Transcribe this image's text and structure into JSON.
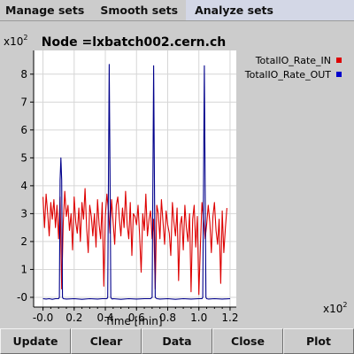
{
  "menu": {
    "items": [
      {
        "label": "Manage sets"
      },
      {
        "label": "Smooth sets"
      },
      {
        "label": "Analyze sets"
      }
    ]
  },
  "toolbar": {
    "buttons": [
      {
        "label": "Update"
      },
      {
        "label": "Clear"
      },
      {
        "label": "Data"
      },
      {
        "label": "Close"
      },
      {
        "label": "Plot"
      }
    ]
  },
  "chart_data": {
    "type": "line",
    "title": "Node =lxbatch002.cern.ch",
    "xlabel": "Time [min]",
    "ylabel": "",
    "x_multiplier": "x10",
    "x_multiplier_exp": "2",
    "y_multiplier": "x10",
    "y_multiplier_exp": "2",
    "xlim": [
      -0.06,
      1.24
    ],
    "ylim": [
      -0.35,
      8.85
    ],
    "xticks": [
      -0.0,
      0.2,
      0.4,
      0.6,
      0.8,
      1.0,
      1.2
    ],
    "xtick_labels": [
      "-0.0",
      "0.2",
      "0.4",
      "0.6",
      "0.8",
      "1.0",
      "1.2"
    ],
    "yticks": [
      -0.0,
      1,
      2,
      3,
      4,
      5,
      6,
      7,
      8
    ],
    "ytick_labels": [
      "-0",
      "1",
      "2",
      "3",
      "4",
      "5",
      "6",
      "7",
      "8"
    ],
    "grid": true,
    "legend_position": "right-top",
    "colors": {
      "in": "#dd0000",
      "out": "#00008b",
      "grid": "#d6d6d6"
    },
    "series": [
      {
        "name": "TotalIO_Rate_IN",
        "color": "#dd0000",
        "x": [
          0.0,
          0.01,
          0.02,
          0.03,
          0.04,
          0.05,
          0.06,
          0.07,
          0.08,
          0.09,
          0.1,
          0.11,
          0.12,
          0.13,
          0.14,
          0.15,
          0.16,
          0.17,
          0.18,
          0.19,
          0.2,
          0.21,
          0.22,
          0.23,
          0.24,
          0.25,
          0.26,
          0.27,
          0.28,
          0.29,
          0.3,
          0.31,
          0.32,
          0.33,
          0.34,
          0.35,
          0.36,
          0.37,
          0.38,
          0.39,
          0.4,
          0.41,
          0.42,
          0.43,
          0.44,
          0.45,
          0.46,
          0.47,
          0.48,
          0.49,
          0.5,
          0.51,
          0.52,
          0.53,
          0.54,
          0.55,
          0.56,
          0.57,
          0.58,
          0.59,
          0.6,
          0.61,
          0.62,
          0.63,
          0.64,
          0.65,
          0.66,
          0.67,
          0.68,
          0.69,
          0.7,
          0.71,
          0.72,
          0.73,
          0.74,
          0.75,
          0.76,
          0.77,
          0.78,
          0.79,
          0.8,
          0.81,
          0.82,
          0.83,
          0.84,
          0.85,
          0.86,
          0.87,
          0.88,
          0.89,
          0.9,
          0.91,
          0.92,
          0.93,
          0.94,
          0.95,
          0.96,
          0.97,
          0.98,
          0.99,
          1.0,
          1.01,
          1.02,
          1.03,
          1.04,
          1.05,
          1.06,
          1.07,
          1.08,
          1.09,
          1.1,
          1.11,
          1.12,
          1.13,
          1.14,
          1.15,
          1.16,
          1.17,
          1.18
        ],
        "y": [
          3.6,
          2.5,
          3.7,
          3.0,
          2.2,
          3.4,
          2.8,
          3.5,
          2.5,
          3.3,
          2.1,
          3.6,
          0.3,
          2.7,
          3.8,
          2.9,
          3.3,
          2.4,
          3.0,
          1.7,
          3.6,
          2.7,
          2.3,
          3.2,
          2.0,
          3.4,
          2.8,
          3.9,
          2.5,
          1.6,
          3.3,
          2.9,
          2.2,
          3.0,
          1.8,
          3.5,
          2.6,
          2.1,
          3.4,
          0.4,
          2.9,
          3.7,
          3.1,
          2.3,
          3.5,
          2.7,
          1.9,
          3.3,
          3.6,
          2.8,
          2.2,
          3.2,
          2.5,
          3.8,
          2.6,
          2.1,
          3.4,
          1.5,
          3.0,
          2.9,
          2.6,
          3.3,
          2.2,
          0.9,
          3.0,
          2.4,
          3.7,
          2.2,
          2.8,
          3.1,
          2.1,
          2.8,
          0.3,
          3.3,
          3.0,
          2.1,
          3.5,
          2.7,
          1.9,
          3.1,
          2.6,
          2.3,
          1.5,
          3.4,
          2.7,
          2.2,
          3.2,
          0.6,
          2.6,
          2.9,
          1.7,
          3.3,
          2.5,
          2.0,
          3.0,
          0.2,
          2.8,
          3.3,
          1.8,
          2.9,
          0.1,
          1.9,
          3.4,
          2.8,
          2.1,
          2.6,
          3.3,
          2.7,
          1.6,
          2.9,
          3.4,
          2.4,
          1.9,
          2.8,
          0.5,
          3.1,
          1.6,
          2.5,
          3.2
        ]
      },
      {
        "name": "TotalIO_Rate_OUT",
        "color": "#00008b",
        "x": [
          0.0,
          0.02,
          0.04,
          0.06,
          0.08,
          0.1,
          0.105,
          0.11,
          0.115,
          0.12,
          0.125,
          0.13,
          0.15,
          0.2,
          0.25,
          0.3,
          0.35,
          0.38,
          0.41,
          0.415,
          0.42,
          0.425,
          0.43,
          0.435,
          0.44,
          0.445,
          0.45,
          0.5,
          0.55,
          0.6,
          0.65,
          0.69,
          0.7,
          0.705,
          0.71,
          0.715,
          0.72,
          0.73,
          0.75,
          0.8,
          0.85,
          0.9,
          0.95,
          1.0,
          1.02,
          1.025,
          1.03,
          1.035,
          1.04,
          1.045,
          1.05,
          1.06,
          1.1,
          1.15,
          1.2
        ],
        "y": [
          -0.05,
          -0.06,
          -0.05,
          -0.07,
          -0.05,
          -0.05,
          0.0,
          4.2,
          5.0,
          4.2,
          0.0,
          -0.05,
          -0.06,
          -0.05,
          -0.07,
          -0.05,
          -0.06,
          -0.05,
          -0.05,
          0.0,
          4.5,
          8.35,
          4.6,
          0.0,
          -0.05,
          -0.06,
          -0.05,
          -0.07,
          -0.05,
          -0.06,
          -0.05,
          -0.05,
          0.0,
          4.3,
          8.3,
          4.2,
          0.0,
          -0.05,
          -0.06,
          -0.05,
          -0.07,
          -0.05,
          -0.06,
          -0.05,
          -0.05,
          0.0,
          4.1,
          8.3,
          4.0,
          0.0,
          -0.05,
          -0.06,
          -0.05,
          -0.06,
          -0.05
        ]
      }
    ]
  }
}
